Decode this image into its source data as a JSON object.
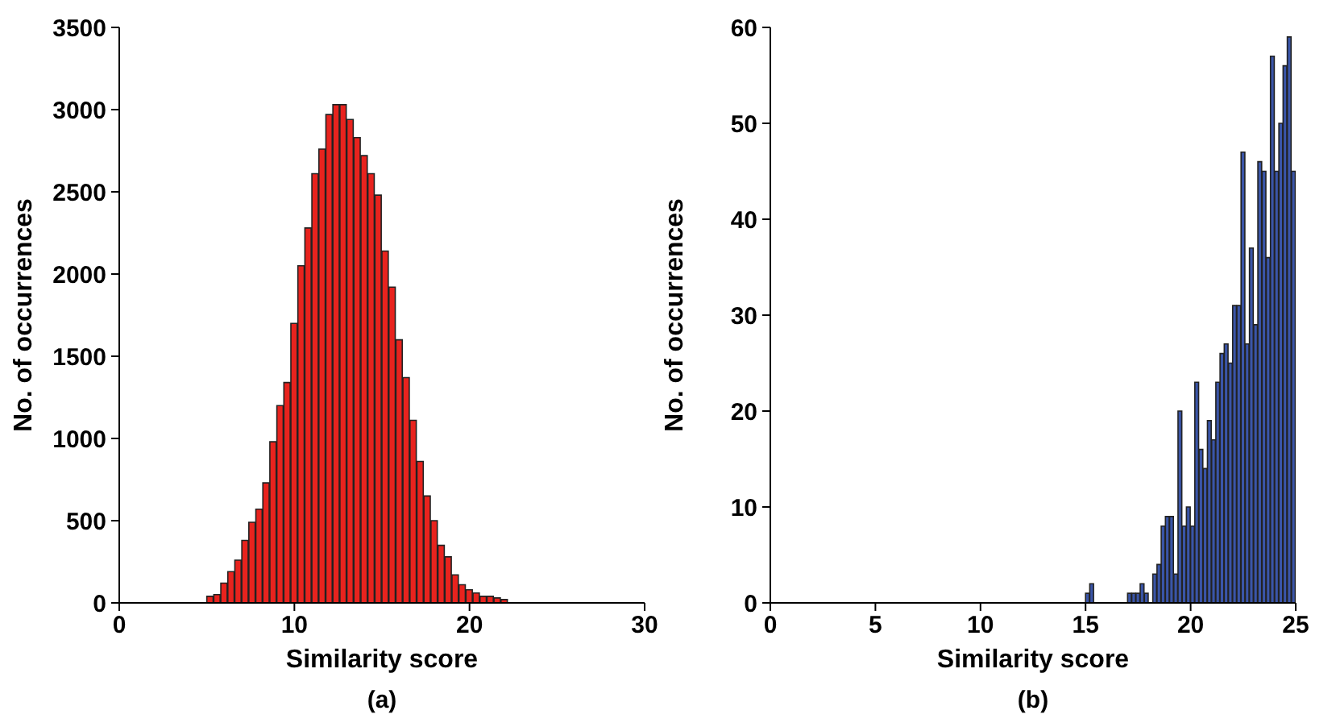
{
  "chart_data": [
    {
      "type": "histogram",
      "xlabel": "Similarity score",
      "ylabel": "No. of occurrences",
      "annotations": [
        "(a)"
      ],
      "color": "#e8231e",
      "bins": [
        3.0,
        3.4,
        3.8,
        4.2,
        4.6,
        5.0,
        5.4,
        5.8,
        6.2,
        6.6,
        7.0,
        7.4,
        7.8,
        8.2,
        8.6,
        9.0,
        9.4,
        9.8,
        10.2,
        10.6,
        11.0,
        11.4,
        11.8,
        12.2,
        12.6,
        13.0,
        13.4,
        13.8,
        14.2,
        14.6,
        15.0,
        15.4,
        15.8,
        16.2,
        16.6,
        17.0,
        17.4,
        17.8,
        18.2,
        18.6,
        19.0,
        19.4,
        19.8,
        20.2,
        20.6,
        21.0,
        21.4,
        21.8,
        22.2,
        22.6,
        23.0
      ],
      "values": [
        0,
        0,
        null,
        null,
        null,
        40,
        50,
        120,
        190,
        260,
        380,
        490,
        570,
        730,
        980,
        1200,
        1340,
        1700,
        2050,
        2280,
        2610,
        2760,
        2970,
        3030,
        3030,
        2940,
        2830,
        2720,
        2610,
        2480,
        2140,
        1920,
        1600,
        1370,
        1110,
        860,
        650,
        500,
        350,
        280,
        170,
        110,
        80,
        60,
        40,
        40,
        30,
        20,
        null,
        null
      ],
      "xlim": [
        0,
        30
      ],
      "xticks": [
        0,
        10,
        20,
        30
      ],
      "ylim": [
        0,
        3500
      ],
      "yticks": [
        0,
        500,
        1000,
        1500,
        2000,
        2500,
        3000,
        3500
      ],
      "grid": false
    },
    {
      "type": "histogram",
      "xlabel": "Similarity score",
      "ylabel": "No. of occurrences",
      "annotations": [
        "(b)"
      ],
      "color": "#3a55a8",
      "bins": [
        15.0,
        15.2,
        15.4,
        15.6,
        15.8,
        16.0,
        16.2,
        16.4,
        16.6,
        16.8,
        17.0,
        17.2,
        17.4,
        17.6,
        17.8,
        18.0,
        18.2,
        18.4,
        18.6,
        18.8,
        19.0,
        19.2,
        19.4,
        19.6,
        19.8,
        20.0,
        20.2,
        20.4,
        20.6,
        20.8,
        21.0,
        21.2,
        21.4,
        21.6,
        21.8,
        22.0,
        22.2,
        22.4,
        22.6,
        22.8,
        23.0,
        23.2,
        23.4,
        23.6,
        23.8,
        24.0,
        24.2,
        24.4,
        24.6,
        24.8,
        25.0
      ],
      "values": [
        1,
        2,
        0,
        0,
        0,
        0,
        0,
        0,
        0,
        0,
        1,
        1,
        1,
        2,
        1,
        0,
        3,
        4,
        8,
        9,
        9,
        3,
        20,
        8,
        10,
        8,
        23,
        16,
        14,
        19,
        17,
        23,
        26,
        27,
        25,
        31,
        31,
        47,
        27,
        37,
        29,
        46,
        45,
        36,
        57,
        45,
        50,
        56,
        59,
        45
      ],
      "xlim": [
        0,
        25
      ],
      "xticks": [
        0,
        5,
        10,
        15,
        20,
        25
      ],
      "ylim": [
        0,
        60
      ],
      "yticks": [
        0,
        10,
        20,
        30,
        40,
        50,
        60
      ],
      "grid": false
    }
  ]
}
